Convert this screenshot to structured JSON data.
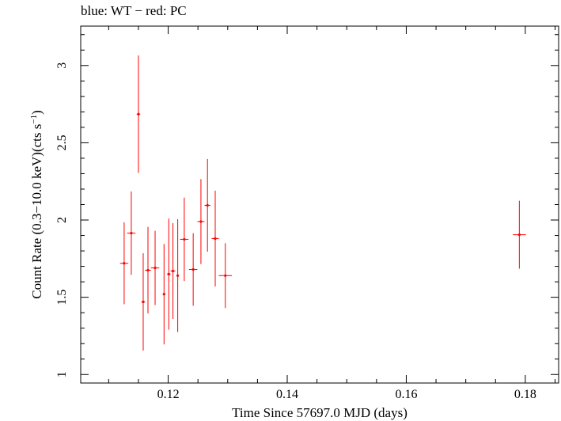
{
  "chart_data": {
    "type": "scatter",
    "title": "blue: WT − red: PC",
    "xlabel": "Time Since 57697.0 MJD (days)",
    "ylabel_main": "Count Rate (0.3−10.0 keV)(cts s",
    "ylabel_sup": "−1",
    "ylabel_close": ")",
    "xlim": [
      0.1053,
      0.1856
    ],
    "ylim": [
      0.945,
      3.255
    ],
    "x_ticks": [
      0.12,
      0.14,
      0.16,
      0.18
    ],
    "x_tick_labels": [
      "0.12",
      "0.14",
      "0.16",
      "0.18"
    ],
    "y_ticks": [
      1,
      1.5,
      2,
      2.5,
      3
    ],
    "y_tick_labels": [
      "1",
      "1.5",
      "2",
      "2.5",
      "3"
    ],
    "series": [
      {
        "color": "#ff0000",
        "points": [
          {
            "x": 0.1126,
            "xerr": 0.0007,
            "y": 1.72,
            "yerr": 0.265
          },
          {
            "x": 0.1138,
            "xerr": 0.0007,
            "y": 1.915,
            "yerr": 0.27
          },
          {
            "x": 0.115,
            "xerr": 0.0003,
            "y": 2.685,
            "yerr": 0.38
          },
          {
            "x": 0.1158,
            "xerr": 0.0003,
            "y": 1.47,
            "yerr": 0.315
          },
          {
            "x": 0.1166,
            "xerr": 0.0005,
            "y": 1.675,
            "yerr": 0.28
          },
          {
            "x": 0.1178,
            "xerr": 0.0007,
            "y": 1.69,
            "yerr": 0.24
          },
          {
            "x": 0.1193,
            "xerr": 0.0002,
            "y": 1.52,
            "yerr": 0.325
          },
          {
            "x": 0.1201,
            "xerr": 0.0003,
            "y": 1.65,
            "yerr": 0.36
          },
          {
            "x": 0.1208,
            "xerr": 0.0004,
            "y": 1.67,
            "yerr": 0.31
          },
          {
            "x": 0.1216,
            "xerr": 0.0002,
            "y": 1.64,
            "yerr": 0.365
          },
          {
            "x": 0.1227,
            "xerr": 0.0007,
            "y": 1.875,
            "yerr": 0.27
          },
          {
            "x": 0.1242,
            "xerr": 0.0007,
            "y": 1.68,
            "yerr": 0.235
          },
          {
            "x": 0.1255,
            "xerr": 0.0006,
            "y": 1.99,
            "yerr": 0.275
          },
          {
            "x": 0.1266,
            "xerr": 0.0005,
            "y": 2.095,
            "yerr": 0.3
          },
          {
            "x": 0.1279,
            "xerr": 0.0006,
            "y": 1.88,
            "yerr": 0.31
          },
          {
            "x": 0.1296,
            "xerr": 0.0011,
            "y": 1.64,
            "yerr": 0.21
          },
          {
            "x": 0.179,
            "xerr": 0.0011,
            "y": 1.905,
            "yerr": 0.22
          }
        ]
      }
    ],
    "grid": false
  }
}
